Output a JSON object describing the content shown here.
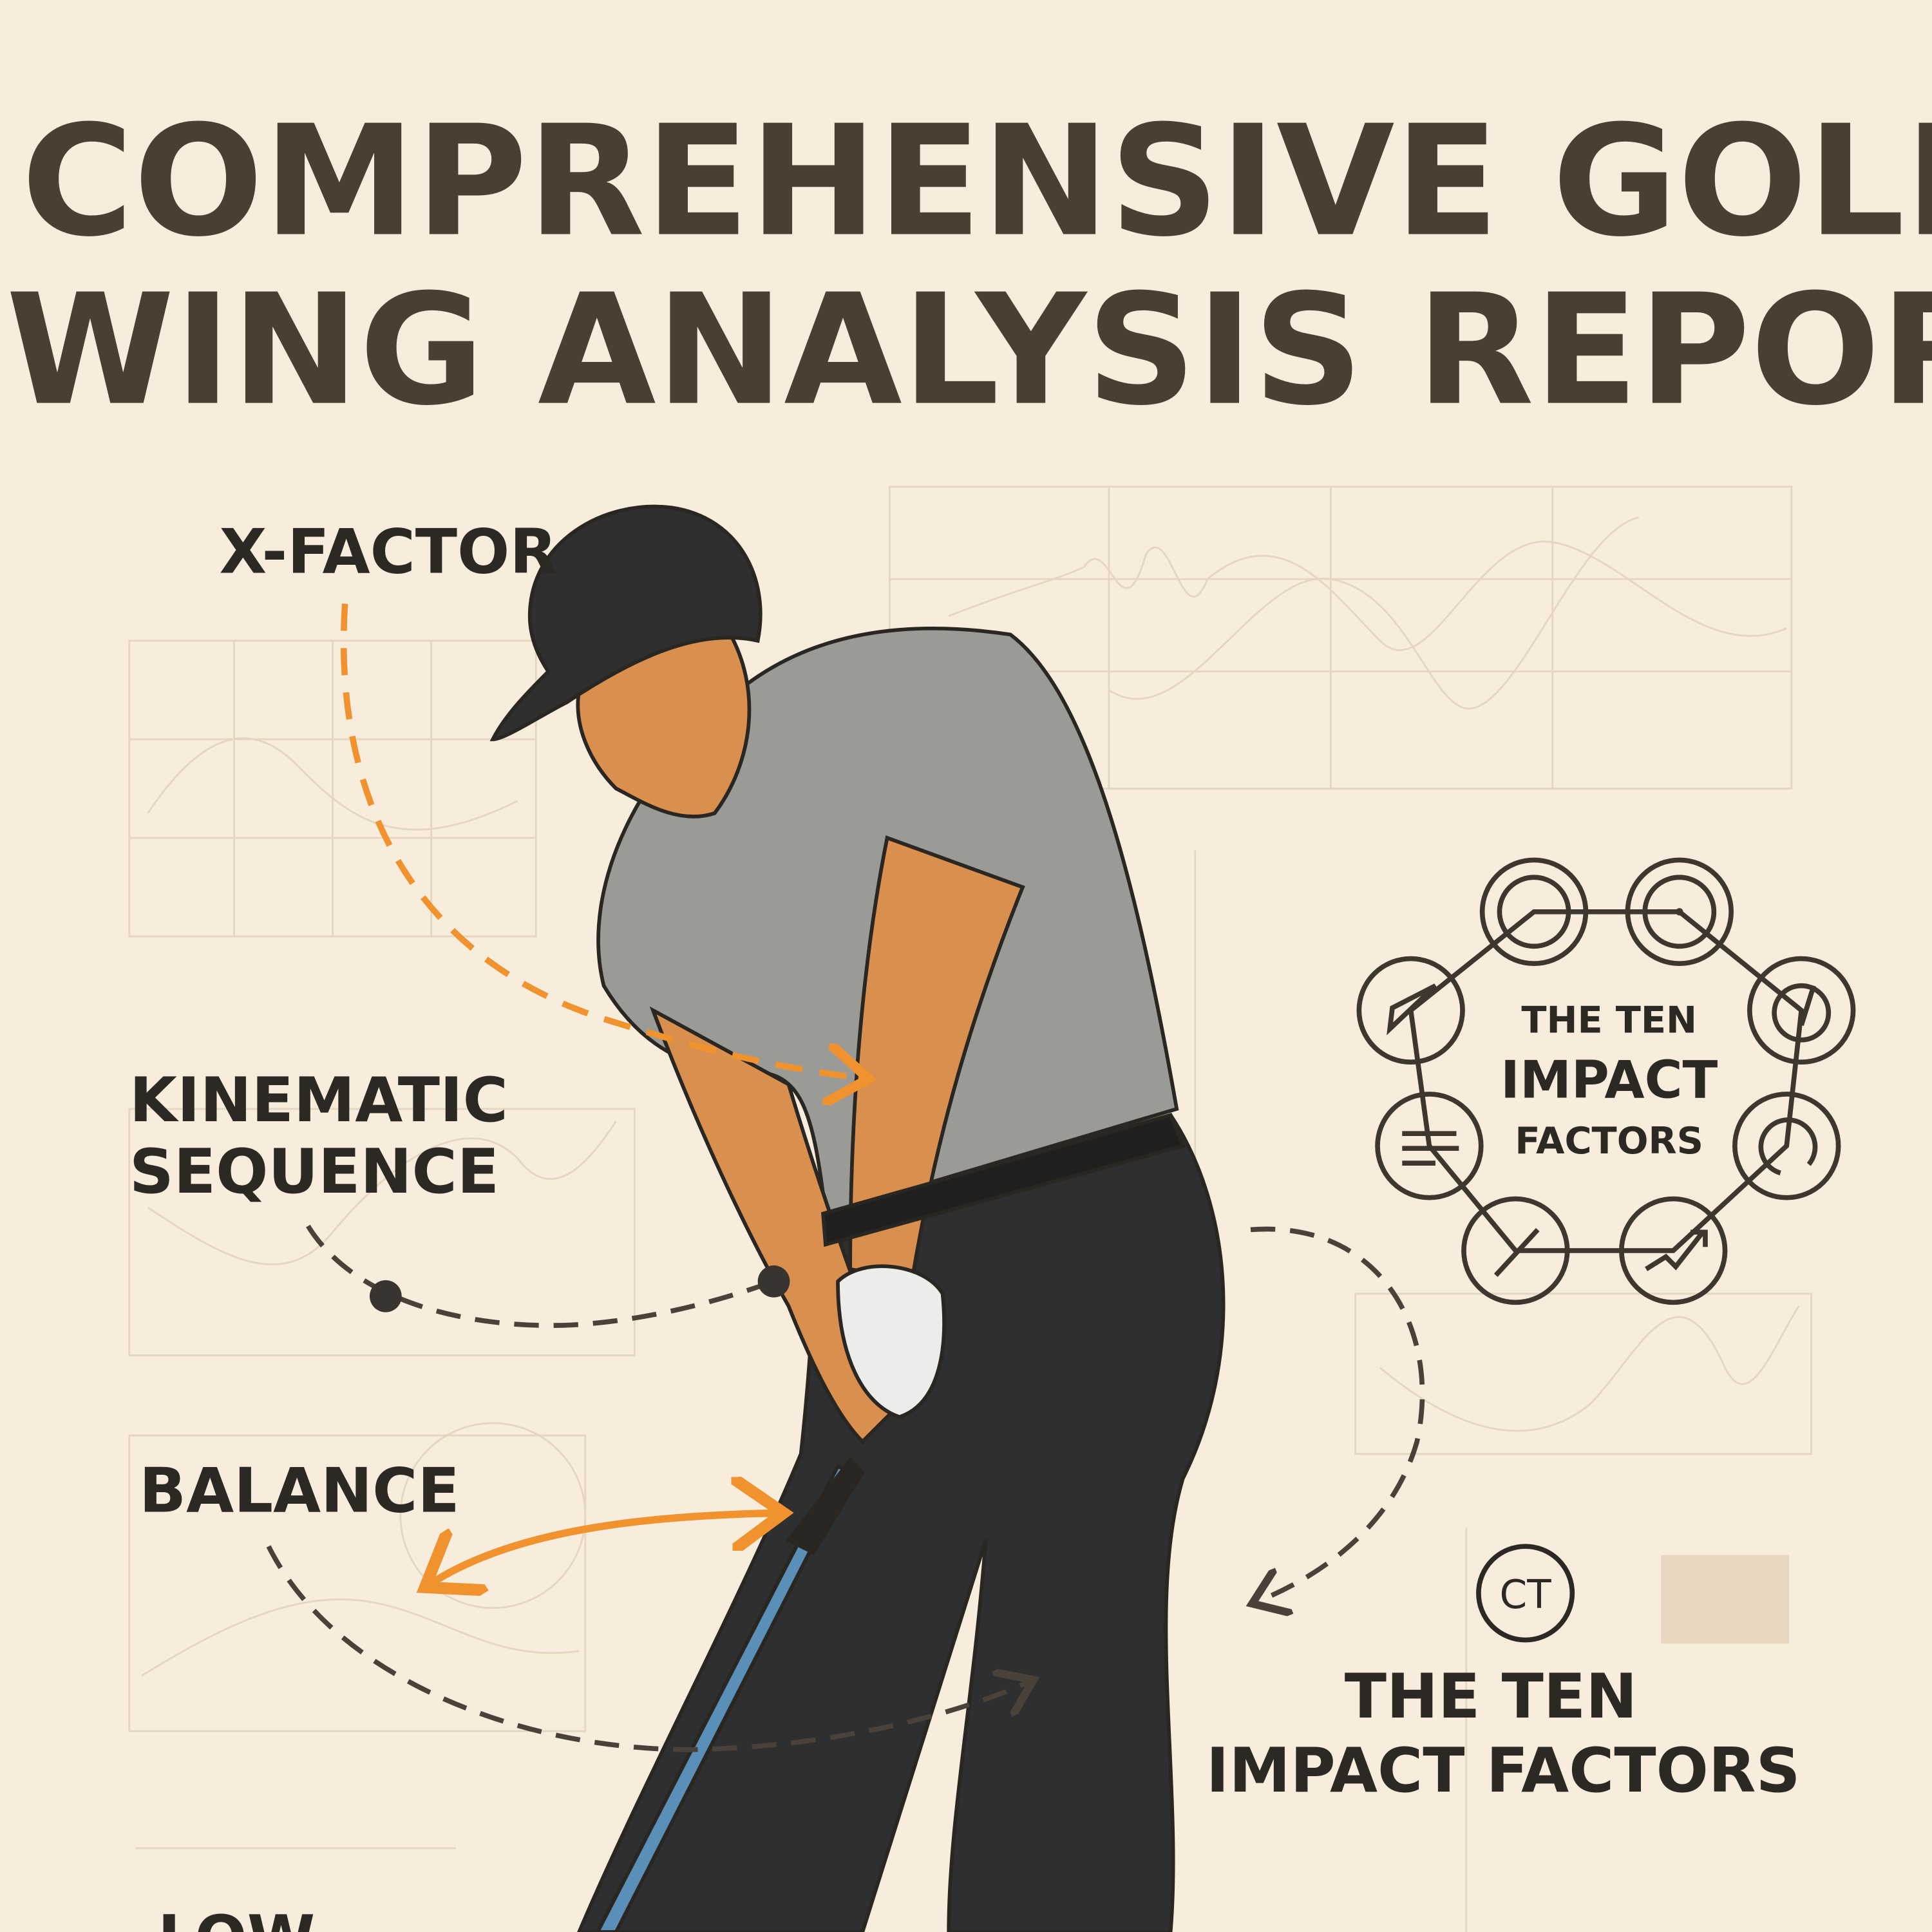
{
  "title": {
    "line1": "COMPREHENSIVE GOLF",
    "line2": "SWING ANALYSIS REPORT"
  },
  "labels": {
    "x_factor": "X-FACTOR",
    "kinematic_line1": "KINEMATIC",
    "kinematic_line2": "SEQUENCE",
    "balance": "BALANCE",
    "low": "LOW"
  },
  "ring": {
    "line1": "THE TEN",
    "line2": "IMPACT",
    "line3": "FACTORS",
    "icons": [
      "double-circle-icon",
      "target-dot-icon",
      "gauge-icon",
      "rotation-icon",
      "trend-arrow-icon",
      "club-icon",
      "lines-icon",
      "arrowhead-icon"
    ]
  },
  "ct_badge": "CT",
  "impact_caption": {
    "line1": "THE TEN",
    "line2": "IMPACT FACTORS"
  },
  "colors": {
    "background": "#f8eddc",
    "title": "#4a3f33",
    "accent_orange": "#f0922e",
    "dashed_dark": "#4a4238",
    "shirt": "#9a9a96",
    "pants": "#2e2f30",
    "club": "#5a8fb8"
  }
}
